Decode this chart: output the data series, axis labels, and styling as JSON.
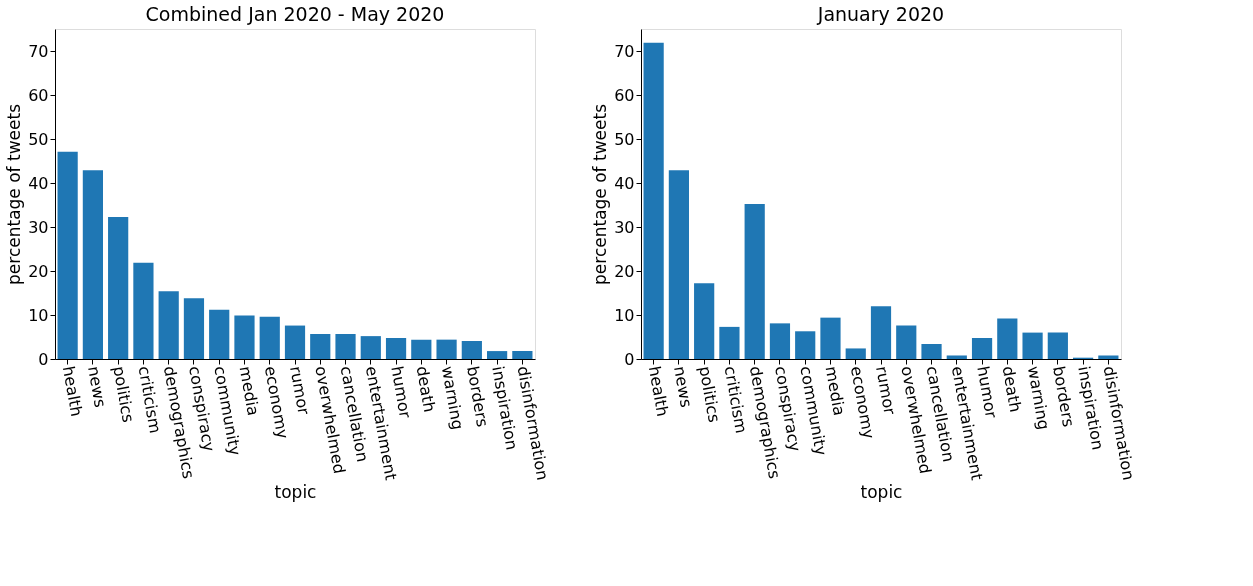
{
  "chart_data": [
    {
      "type": "bar",
      "title": "Combined Jan 2020 - May 2020",
      "xlabel": "topic",
      "ylabel": "percentage of tweets",
      "categories": [
        "health",
        "news",
        "politics",
        "criticism",
        "demographics",
        "conspiracy",
        "community",
        "media",
        "economy",
        "rumor",
        "overwhelmed",
        "cancellation",
        "entertainment",
        "humor",
        "death",
        "warning",
        "borders",
        "inspiration",
        "disinformation"
      ],
      "values": [
        47.1,
        42.9,
        32.3,
        21.9,
        15.4,
        13.8,
        11.2,
        9.9,
        9.6,
        7.6,
        5.7,
        5.7,
        5.2,
        4.8,
        4.4,
        4.4,
        4.1,
        1.8,
        1.8
      ],
      "color": "#1f77b4",
      "ylim": [
        0,
        75
      ],
      "yticks": [
        0,
        10,
        20,
        30,
        40,
        50,
        60,
        70
      ],
      "grid": false
    },
    {
      "type": "bar",
      "title": "January 2020",
      "xlabel": "topic",
      "ylabel": "percentage of tweets",
      "categories": [
        "health",
        "news",
        "politics",
        "criticism",
        "demographics",
        "conspiracy",
        "community",
        "media",
        "economy",
        "rumor",
        "overwhelmed",
        "cancellation",
        "entertainment",
        "humor",
        "death",
        "warning",
        "borders",
        "inspiration",
        "disinformation"
      ],
      "values": [
        71.9,
        42.9,
        17.2,
        7.3,
        35.2,
        8.1,
        6.3,
        9.4,
        2.4,
        12.0,
        7.6,
        3.4,
        0.8,
        4.8,
        9.2,
        6.0,
        6.0,
        0.3,
        0.8
      ],
      "color": "#1f77b4",
      "ylim": [
        0,
        75
      ],
      "yticks": [
        0,
        10,
        20,
        30,
        40,
        50,
        60,
        70
      ],
      "grid": false
    }
  ]
}
